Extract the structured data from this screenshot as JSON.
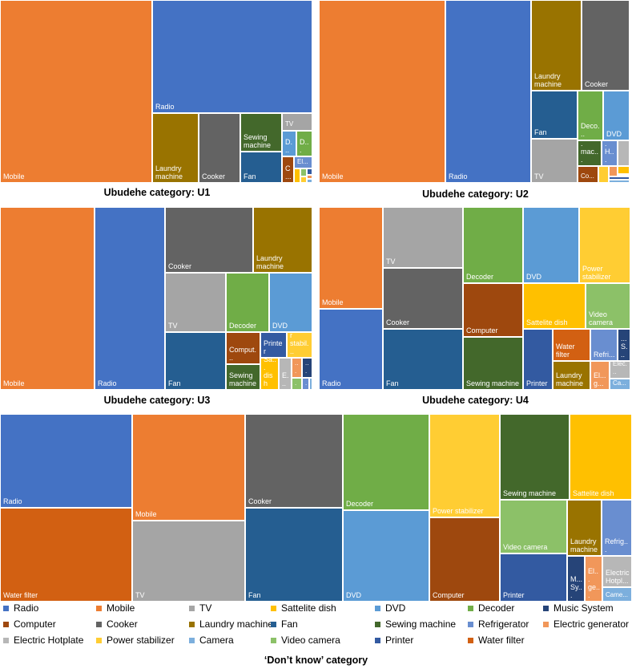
{
  "colors": {
    "Radio": "#4472C4",
    "Mobile": "#ED7D31",
    "TV": "#A5A5A5",
    "Sattelite dish": "#FFC000",
    "DVD": "#5B9BD5",
    "Decoder": "#70AD47",
    "Music System": "#264478",
    "Computer": "#9E480E",
    "Cooker": "#636363",
    "Laundry machine": "#997300",
    "Fan": "#255E91",
    "Sewing machine": "#43682B",
    "Refrigerator": "#698ED0",
    "Electric generator": "#F1975A",
    "Electric Hotplate": "#B7B7B7",
    "Power stabilizer": "#FFCD33",
    "Camera": "#7CAFDD",
    "Video camera": "#8CC168",
    "Printer": "#335AA1",
    "Water filter": "#D26012"
  },
  "legend": {
    "items": [
      "Radio",
      "Mobile",
      "TV",
      "Sattelite dish",
      "DVD",
      "Decoder",
      "Music System",
      "Computer",
      "Cooker",
      "Laundry machine",
      "Fan",
      "Sewing machine",
      "Refrigerator",
      "Electric generator",
      "Electric Hotplate",
      "Power stabilizer",
      "Camera",
      "Video camera",
      "Printer",
      "Water filter"
    ]
  },
  "chart_data": [
    {
      "type": "treemap",
      "title": "Ubudehe category: U1",
      "tiles": [
        {
          "category": "Mobile",
          "label": "Mobile"
        },
        {
          "category": "Radio",
          "label": "Radio"
        },
        {
          "category": "Laundry machine",
          "label": "Laundry machine"
        },
        {
          "category": "Cooker",
          "label": "Cooker"
        },
        {
          "category": "Sewing machine",
          "label": "Sewing machine"
        },
        {
          "category": "Fan",
          "label": "Fan"
        },
        {
          "category": "TV",
          "label": "TV"
        },
        {
          "category": "DVD",
          "label": "D..."
        },
        {
          "category": "Decoder",
          "label": "D..."
        },
        {
          "category": "Computer",
          "label": "C..."
        },
        {
          "category": "Refrigerator",
          "label": "El..."
        },
        {
          "category": "Sattelite dish",
          "label": ""
        },
        {
          "category": "Video camera",
          "label": ""
        },
        {
          "category": "Power stabilizer",
          "label": ""
        },
        {
          "category": "Printer",
          "label": ""
        },
        {
          "category": "Electric generator",
          "label": ""
        },
        {
          "category": "Camera",
          "label": ""
        }
      ]
    },
    {
      "type": "treemap",
      "title": "Ubudehe category: U2",
      "tiles": [
        {
          "category": "Mobile",
          "label": "Mobile"
        },
        {
          "category": "Radio",
          "label": "Radio"
        },
        {
          "category": "Laundry machine",
          "label": "Laundry machine"
        },
        {
          "category": "Cooker",
          "label": "Cooker"
        },
        {
          "category": "Fan",
          "label": "Fan"
        },
        {
          "category": "TV",
          "label": "TV"
        },
        {
          "category": "Decoder",
          "label": "Deco..."
        },
        {
          "category": "DVD",
          "label": "DVD"
        },
        {
          "category": "Sewing machine",
          "label": "Sew... mac..."
        },
        {
          "category": "Refrigerator",
          "label": "El... H..."
        },
        {
          "category": "Electric Hotplate",
          "label": ""
        },
        {
          "category": "Computer",
          "label": "Co..."
        },
        {
          "category": "Power stabilizer",
          "label": ""
        },
        {
          "category": "Electric generator",
          "label": ""
        },
        {
          "category": "Sattelite dish",
          "label": ""
        },
        {
          "category": "Printer",
          "label": ""
        },
        {
          "category": "Camera",
          "label": ""
        }
      ]
    },
    {
      "type": "treemap",
      "title": "Ubudehe category: U3",
      "tiles": [
        {
          "category": "Mobile",
          "label": "Mobile"
        },
        {
          "category": "Radio",
          "label": "Radio"
        },
        {
          "category": "Cooker",
          "label": "Cooker"
        },
        {
          "category": "Laundry machine",
          "label": "Laundry machine"
        },
        {
          "category": "TV",
          "label": "TV"
        },
        {
          "category": "Decoder",
          "label": "Decoder"
        },
        {
          "category": "DVD",
          "label": "DVD"
        },
        {
          "category": "Fan",
          "label": "Fan"
        },
        {
          "category": "Computer",
          "label": "Comput..."
        },
        {
          "category": "Sewing machine",
          "label": "Sewing machine"
        },
        {
          "category": "Printer",
          "label": "Printer"
        },
        {
          "category": "Power stabilizer",
          "label": "Power stabil..."
        },
        {
          "category": "Sattelite dish",
          "label": "Sa... dish"
        },
        {
          "category": "Electric Hotplate",
          "label": "E..."
        },
        {
          "category": "Electric generator",
          "label": "..."
        },
        {
          "category": "Music System",
          "label": "..."
        },
        {
          "category": "Video camera",
          "label": "V..."
        },
        {
          "category": "Refrigerator",
          "label": "..."
        },
        {
          "category": "Camera",
          "label": ""
        }
      ]
    },
    {
      "type": "treemap",
      "title": "Ubudehe category: U4",
      "tiles": [
        {
          "category": "Mobile",
          "label": "Mobile"
        },
        {
          "category": "Radio",
          "label": "Radio"
        },
        {
          "category": "TV",
          "label": "TV"
        },
        {
          "category": "Cooker",
          "label": "Cooker"
        },
        {
          "category": "Fan",
          "label": "Fan"
        },
        {
          "category": "Decoder",
          "label": "Decoder"
        },
        {
          "category": "DVD",
          "label": "DVD"
        },
        {
          "category": "Power stabilizer",
          "label": "Power stabilizer"
        },
        {
          "category": "Computer",
          "label": "Computer"
        },
        {
          "category": "Sattelite dish",
          "label": "Sattelite dish"
        },
        {
          "category": "Video camera",
          "label": "Video camera"
        },
        {
          "category": "Sewing machine",
          "label": "Sewing machine"
        },
        {
          "category": "Printer",
          "label": "Printer"
        },
        {
          "category": "Water filter",
          "label": "Water filter"
        },
        {
          "category": "Refrigerator",
          "label": "Refri..."
        },
        {
          "category": "Music System",
          "label": "... S..."
        },
        {
          "category": "Laundry machine",
          "label": "Laundry machine"
        },
        {
          "category": "Electric generator",
          "label": "El... g..."
        },
        {
          "category": "Electric Hotplate",
          "label": "Elec..."
        },
        {
          "category": "Camera",
          "label": "Ca..."
        }
      ]
    },
    {
      "type": "treemap",
      "title": "‘Don’t know’ category",
      "tiles": [
        {
          "category": "Radio",
          "label": "Radio"
        },
        {
          "category": "Water filter",
          "label": "Water filter"
        },
        {
          "category": "Mobile",
          "label": "Mobile"
        },
        {
          "category": "TV",
          "label": "TV"
        },
        {
          "category": "Cooker",
          "label": "Cooker"
        },
        {
          "category": "Fan",
          "label": "Fan"
        },
        {
          "category": "Decoder",
          "label": "Decoder"
        },
        {
          "category": "DVD",
          "label": "DVD"
        },
        {
          "category": "Power stabilizer",
          "label": "Power stabilizer"
        },
        {
          "category": "Computer",
          "label": "Computer"
        },
        {
          "category": "Sewing machine",
          "label": "Sewing machine"
        },
        {
          "category": "Sattelite dish",
          "label": "Sattelite dish"
        },
        {
          "category": "Video camera",
          "label": "Video camera"
        },
        {
          "category": "Printer",
          "label": "Printer"
        },
        {
          "category": "Laundry machine",
          "label": "Laundry machine"
        },
        {
          "category": "Refrigerator",
          "label": "Refrig..."
        },
        {
          "category": "Music System",
          "label": "M... Sy..."
        },
        {
          "category": "Electric generator",
          "label": "El... ge..."
        },
        {
          "category": "Electric Hotplate",
          "label": "Electric Hotpl..."
        },
        {
          "category": "Camera",
          "label": "Came..."
        }
      ]
    }
  ]
}
